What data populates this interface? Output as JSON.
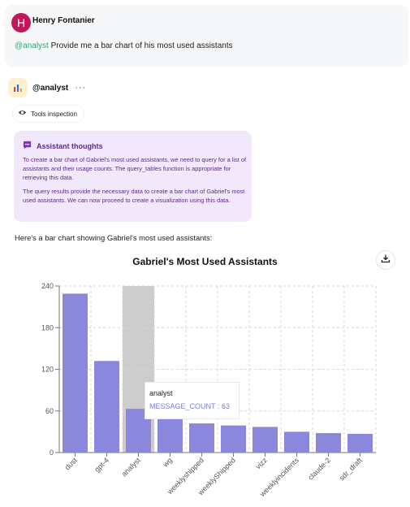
{
  "user": {
    "initial": "H",
    "name": "Henry Fontanier",
    "mention": "@analyst",
    "text": " Provide me a bar chart of his most used assistants"
  },
  "assistant": {
    "name": "@analyst",
    "more": "···",
    "tools_label": "Tools inspection"
  },
  "thoughts": {
    "title": "Assistant thoughts",
    "p1": "To create a bar chart of Gabriel's most used assistants, we need to query for a list of assistants and their usage counts. The query_tables function is appropriate for retrieving this data.",
    "p2": "The query results provide the necessary data to create a bar chart of Gabriel's most used assistants. We can now proceed to create a visualization using this data."
  },
  "response_intro": "Here's a bar chart showing Gabriel's most used assistants:",
  "colors": {
    "bar": "#8a87dc",
    "highlight": "#cccccc",
    "tooltip_value": "#7a7de0"
  },
  "chart_data": {
    "type": "bar",
    "title": "Gabriel's Most Used Assistants",
    "categories": [
      "dust",
      "gpt-4",
      "analyst",
      "wg",
      "weeklyshipped",
      "weeklyShipped",
      "vizz",
      "weeklyincidents",
      "claude-2",
      "sdr_draft"
    ],
    "values": [
      229,
      132,
      63,
      55,
      42,
      39,
      37,
      30,
      28,
      27
    ],
    "ylim": [
      0,
      240
    ],
    "yticks": [
      0,
      60,
      120,
      180,
      240
    ],
    "grid": true,
    "highlighted_index": 2
  },
  "tooltip": {
    "name": "analyst",
    "value_text": "MESSAGE_COUNT : 63"
  }
}
